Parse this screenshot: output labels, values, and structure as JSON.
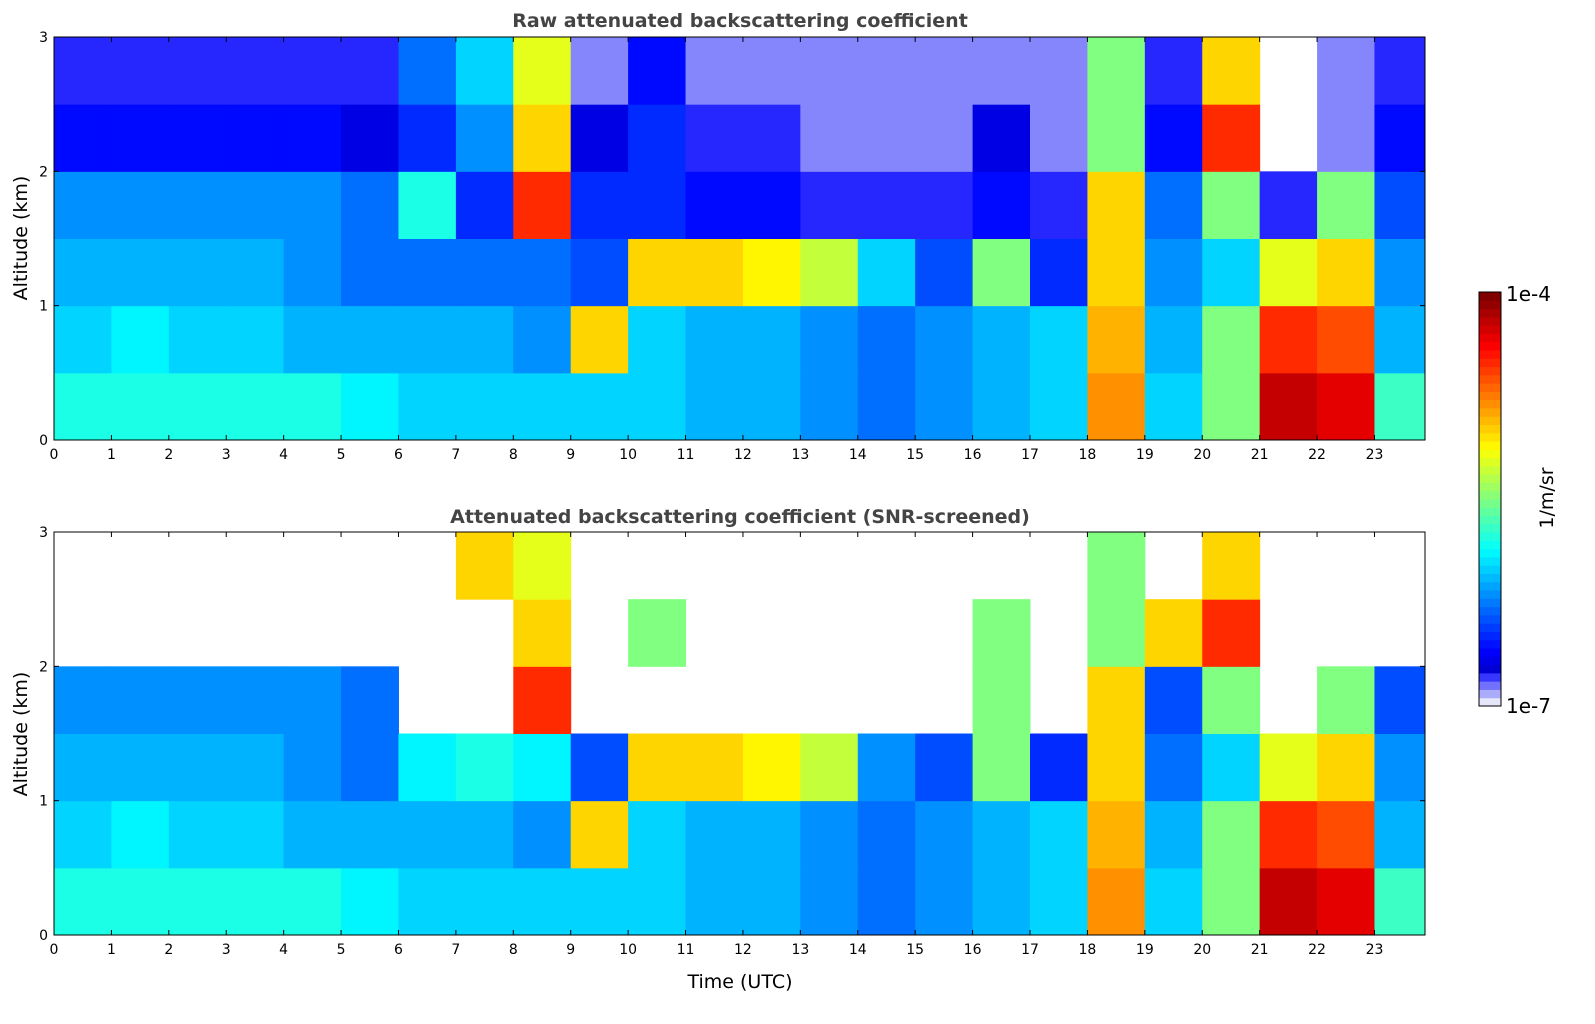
{
  "chart_data": [
    {
      "type": "heatmap",
      "title": "Raw attenuated backscattering coefficient",
      "xlabel": "",
      "ylabel": "Altitude (km)",
      "xlim": [
        0,
        23.88
      ],
      "ylim": [
        0,
        3
      ],
      "xticks": [
        "0",
        "1",
        "2",
        "3",
        "4",
        "5",
        "6",
        "7",
        "8",
        "9",
        "10",
        "11",
        "12",
        "13",
        "14",
        "15",
        "16",
        "17",
        "18",
        "19",
        "20",
        "21",
        "22",
        "23"
      ],
      "yticks": [
        "0",
        "1",
        "2",
        "3"
      ],
      "x_hours": [
        0,
        1,
        2,
        3,
        4,
        5,
        6,
        7,
        8,
        9,
        10,
        11,
        12,
        13,
        14,
        15,
        16,
        17,
        18,
        19,
        20,
        21,
        22,
        23
      ],
      "altitude_bins_km": [
        0.25,
        0.75,
        1.25,
        1.75,
        2.25,
        2.75
      ],
      "log10_values": [
        [
          -5.8,
          -5.8,
          -5.8,
          -5.8,
          -5.8,
          -5.9,
          -6.0,
          -6.0,
          -6.0,
          -6.0,
          -6.0,
          -6.1,
          -6.1,
          -6.2,
          -6.3,
          -6.2,
          -6.1,
          -6.0,
          -4.8,
          -6.0,
          -5.5,
          -4.2,
          -4.3,
          -5.7
        ],
        [
          -6.0,
          -5.9,
          -6.0,
          -6.0,
          -6.1,
          -6.1,
          -6.1,
          -6.1,
          -6.2,
          -5.0,
          -6.0,
          -6.1,
          -6.1,
          -6.2,
          -6.3,
          -6.2,
          -6.1,
          -6.0,
          -4.9,
          -6.1,
          -5.5,
          -4.5,
          -4.6,
          -6.1
        ],
        [
          -6.1,
          -6.1,
          -6.1,
          -6.1,
          -6.2,
          -6.3,
          -6.3,
          -6.3,
          -6.3,
          -6.4,
          -5.0,
          -5.0,
          -5.1,
          -5.3,
          -6.0,
          -6.4,
          -5.5,
          -6.5,
          -5.0,
          -6.2,
          -6.0,
          -5.2,
          -5.0,
          -6.2
        ],
        [
          -6.2,
          -6.2,
          -6.2,
          -6.2,
          -6.2,
          -6.3,
          -5.8,
          -6.5,
          -4.5,
          -6.5,
          -6.5,
          -6.6,
          -6.6,
          -6.8,
          -6.8,
          -6.8,
          -6.6,
          -6.8,
          -5.0,
          -6.3,
          -5.5,
          -6.8,
          -5.5,
          -6.4
        ],
        [
          -6.6,
          -6.6,
          -6.6,
          -6.6,
          -6.6,
          -6.7,
          -6.5,
          -6.2,
          -5.0,
          -6.7,
          -6.5,
          -6.8,
          -6.8,
          -6.9,
          -6.9,
          -6.9,
          -6.7,
          -6.9,
          -5.5,
          -6.6,
          -4.5,
          null,
          -6.9,
          -6.6
        ],
        [
          -6.8,
          -6.8,
          -6.8,
          -6.8,
          -6.8,
          -6.8,
          -6.3,
          -6.0,
          -5.2,
          -6.9,
          -6.6,
          -6.9,
          -6.9,
          -6.9,
          -6.9,
          -6.9,
          -6.9,
          -6.9,
          -5.5,
          -6.8,
          -5.0,
          null,
          -6.9,
          -6.8
        ]
      ]
    },
    {
      "type": "heatmap",
      "title": "Attenuated backscattering coefficient (SNR-screened)",
      "xlabel": "Time (UTC)",
      "ylabel": "Altitude (km)",
      "xlim": [
        0,
        23.88
      ],
      "ylim": [
        0,
        3
      ],
      "xticks": [
        "0",
        "1",
        "2",
        "3",
        "4",
        "5",
        "6",
        "7",
        "8",
        "9",
        "10",
        "11",
        "12",
        "13",
        "14",
        "15",
        "16",
        "17",
        "18",
        "19",
        "20",
        "21",
        "22",
        "23"
      ],
      "yticks": [
        "0",
        "1",
        "2",
        "3"
      ],
      "x_hours": [
        0,
        1,
        2,
        3,
        4,
        5,
        6,
        7,
        8,
        9,
        10,
        11,
        12,
        13,
        14,
        15,
        16,
        17,
        18,
        19,
        20,
        21,
        22,
        23
      ],
      "altitude_bins_km": [
        0.25,
        0.75,
        1.25,
        1.75,
        2.25,
        2.75
      ],
      "log10_values": [
        [
          -5.8,
          -5.8,
          -5.8,
          -5.8,
          -5.8,
          -5.9,
          -6.0,
          -6.0,
          -6.0,
          -6.0,
          -6.0,
          -6.1,
          -6.1,
          -6.2,
          -6.3,
          -6.2,
          -6.1,
          -6.0,
          -4.8,
          -6.0,
          -5.5,
          -4.2,
          -4.3,
          -5.7
        ],
        [
          -6.0,
          -5.9,
          -6.0,
          -6.0,
          -6.1,
          -6.1,
          -6.1,
          -6.1,
          -6.2,
          -5.0,
          -6.0,
          -6.1,
          -6.1,
          -6.2,
          -6.3,
          -6.2,
          -6.1,
          -6.0,
          -4.9,
          -6.1,
          -5.5,
          -4.5,
          -4.6,
          -6.1
        ],
        [
          -6.1,
          -6.1,
          -6.1,
          -6.1,
          -6.2,
          -6.3,
          -5.9,
          -5.8,
          -5.9,
          -6.4,
          -5.0,
          -5.0,
          -5.1,
          -5.3,
          -6.2,
          -6.4,
          -5.5,
          -6.5,
          -5.0,
          -6.3,
          -6.0,
          -5.2,
          -5.0,
          -6.2
        ],
        [
          -6.2,
          -6.2,
          -6.2,
          -6.2,
          -6.2,
          -6.3,
          null,
          null,
          -4.5,
          null,
          null,
          null,
          null,
          null,
          null,
          null,
          -5.5,
          null,
          -5.0,
          -6.4,
          -5.5,
          null,
          -5.5,
          -6.4
        ],
        [
          null,
          null,
          null,
          null,
          null,
          null,
          null,
          null,
          -5.0,
          null,
          -5.5,
          null,
          null,
          null,
          null,
          null,
          -5.5,
          null,
          -5.5,
          -5.0,
          -4.5,
          null,
          null,
          null
        ],
        [
          null,
          null,
          null,
          null,
          null,
          null,
          null,
          -5.0,
          -5.2,
          null,
          null,
          null,
          null,
          null,
          null,
          null,
          null,
          null,
          -5.5,
          null,
          -5.0,
          null,
          null,
          null
        ]
      ]
    }
  ],
  "colorbar": {
    "label": "1/m/sr",
    "max_label": "1e-4",
    "min_label": "1e-7",
    "log10_range": [
      -7,
      -4
    ]
  }
}
